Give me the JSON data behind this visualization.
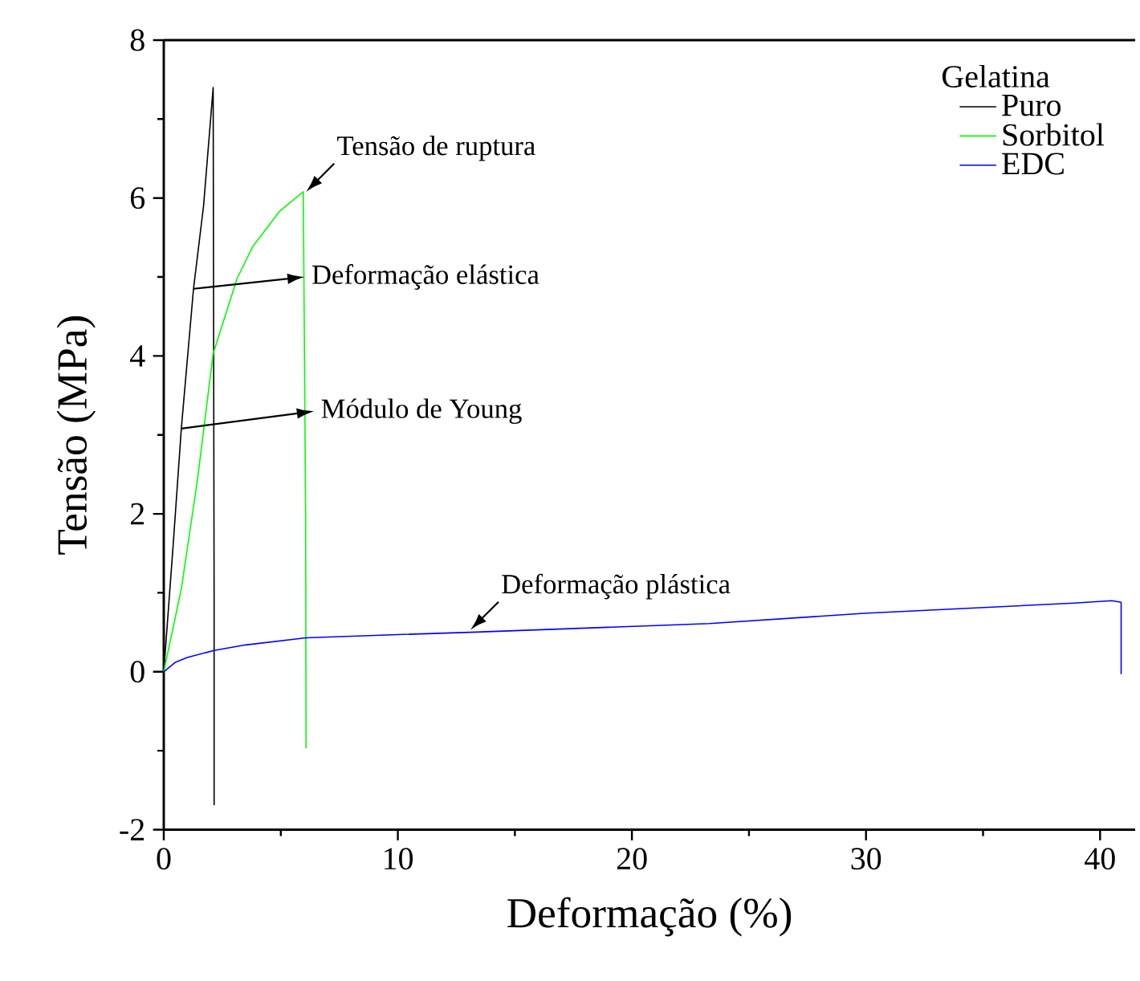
{
  "chart_data": {
    "type": "line",
    "xlabel": "Deformação (%)",
    "ylabel": "Tensão (MPa)",
    "legend_title": "Gelatina",
    "xlim": [
      0,
      41.5
    ],
    "ylim": [
      -2,
      8
    ],
    "xticks": [
      0,
      10,
      20,
      30,
      40
    ],
    "yticks": [
      -2,
      0,
      2,
      4,
      6,
      8
    ],
    "legend": "top right",
    "grid": false,
    "marker": "none",
    "line_style": "solid",
    "series": [
      {
        "name": "Puro",
        "color": "#000000",
        "x": [
          0,
          0.4,
          0.75,
          1.27,
          1.7,
          2.11,
          2.15,
          2.15
        ],
        "values": [
          0,
          1.6,
          3.08,
          4.85,
          5.9,
          7.4,
          1.0,
          -1.69
        ]
      },
      {
        "name": "Sorbitol",
        "color": "#00ff00",
        "x": [
          0,
          0.75,
          1.43,
          2.11,
          3.13,
          3.81,
          4.94,
          5.96,
          6.06,
          6.08
        ],
        "values": [
          0,
          1.05,
          2.41,
          4.03,
          4.98,
          5.39,
          5.83,
          6.08,
          2.0,
          -0.97
        ]
      },
      {
        "name": "EDC",
        "color": "#0000ff",
        "x": [
          0,
          0.5,
          1,
          2.15,
          3.5,
          6.08,
          10,
          13.1,
          23.3,
          29.9,
          38.9,
          40.5,
          40.9,
          40.9
        ],
        "values": [
          0,
          0.12,
          0.18,
          0.27,
          0.34,
          0.43,
          0.47,
          0.5,
          0.61,
          0.74,
          0.87,
          0.9,
          0.88,
          -0.03
        ]
      }
    ],
    "annotations": [
      {
        "text": "Tensão de ruptura",
        "x": 6.08,
        "y": 6.08
      },
      "Deformação elástica",
      {
        "text": "Módulo de Young",
        "x": 0.75,
        "y": 3.08
      },
      {
        "text": "Deformação plástica",
        "x": 13.1,
        "y": 0.53
      }
    ]
  }
}
